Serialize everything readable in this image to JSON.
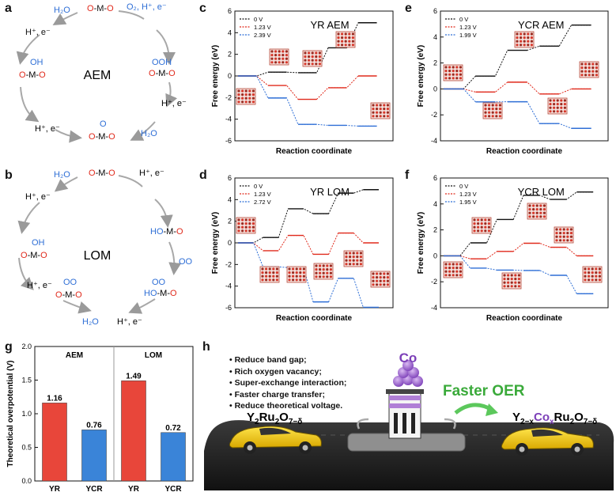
{
  "panels": {
    "a": "a",
    "b": "b",
    "c": "c",
    "d": "d",
    "e": "e",
    "f": "f",
    "g": "g",
    "h": "h"
  },
  "mechanisms": {
    "aem": {
      "center": "AEM",
      "species": [
        "H2O",
        "O-M-O",
        "O2, H+, e-",
        "OOH O-M-O",
        "H+, e-",
        "O O-M-O",
        "H2O",
        "H+, e-",
        "OH O-M-O",
        "H+, e-"
      ]
    },
    "lom": {
      "center": "LOM",
      "species": [
        "H2O",
        "O-M-O",
        "H+, e-",
        "HO-M-O",
        "OO",
        "OO HO-M-O",
        "H+, e-",
        "H2O",
        "OO O-M-O",
        "H+, e-",
        "OH O-M-O",
        "H+, e-"
      ]
    }
  },
  "chart_data": [
    {
      "id": "c",
      "type": "line",
      "title": "YR AEM",
      "xlabel": "Reaction coordinate",
      "ylabel": "Free energy (eV)",
      "ylim": [
        -6,
        6
      ],
      "yticks": [
        -6,
        -4,
        -2,
        0,
        2,
        4,
        6
      ],
      "series": [
        {
          "name": "0 V",
          "color": "#111111",
          "values": [
            0,
            0.35,
            0.3,
            2.6,
            4.92
          ]
        },
        {
          "name": "1.23 V",
          "color": "#e02a1c",
          "values": [
            0,
            -0.88,
            -2.16,
            -1.09,
            0
          ]
        },
        {
          "name": "2.39 V",
          "color": "#2f6fd6",
          "values": [
            0,
            -2.04,
            -4.48,
            -4.57,
            -4.64
          ]
        }
      ]
    },
    {
      "id": "d",
      "type": "line",
      "title": "YR LOM",
      "xlabel": "Reaction coordinate",
      "ylabel": "Free energy (eV)",
      "ylim": [
        -6,
        6
      ],
      "yticks": [
        -6,
        -4,
        -2,
        0,
        2,
        4,
        6
      ],
      "series": [
        {
          "name": "0 V",
          "color": "#111111",
          "values": [
            0,
            0.5,
            3.15,
            2.7,
            4.6,
            4.92
          ]
        },
        {
          "name": "1.23 V",
          "color": "#e02a1c",
          "values": [
            0,
            -0.73,
            0.69,
            -1.06,
            0.91,
            0
          ]
        },
        {
          "name": "2.72 V",
          "color": "#2f6fd6",
          "values": [
            0,
            -2.22,
            -2.29,
            -5.46,
            -3.28,
            -5.96
          ]
        }
      ]
    },
    {
      "id": "e",
      "type": "line",
      "title": "YCR AEM",
      "xlabel": "Reaction coordinate",
      "ylabel": "Free energy (eV)",
      "ylim": [
        -4,
        6
      ],
      "yticks": [
        -4,
        -2,
        0,
        2,
        4,
        6
      ],
      "series": [
        {
          "name": "0 V",
          "color": "#111111",
          "values": [
            0,
            0.99,
            2.98,
            3.3,
            4.92
          ]
        },
        {
          "name": "1.23 V",
          "color": "#e02a1c",
          "values": [
            0,
            -0.24,
            0.52,
            -0.39,
            0
          ]
        },
        {
          "name": "1.99 V",
          "color": "#2f6fd6",
          "values": [
            0,
            -1.0,
            -0.99,
            -2.67,
            -3.04
          ]
        }
      ]
    },
    {
      "id": "f",
      "type": "line",
      "title": "YCR LOM",
      "xlabel": "Reaction coordinate",
      "ylabel": "Free energy (eV)",
      "ylim": [
        -4,
        6
      ],
      "yticks": [
        -4,
        -2,
        0,
        2,
        4,
        6
      ],
      "series": [
        {
          "name": "0 V",
          "color": "#111111",
          "values": [
            0,
            1.0,
            2.8,
            4.66,
            4.35,
            4.92
          ]
        },
        {
          "name": "1.23 V",
          "color": "#e02a1c",
          "values": [
            0,
            -0.23,
            0.34,
            0.97,
            0.66,
            0
          ]
        },
        {
          "name": "1.95 V",
          "color": "#2f6fd6",
          "values": [
            0,
            -0.95,
            -1.1,
            -1.13,
            -1.5,
            -2.92
          ]
        }
      ]
    },
    {
      "id": "g",
      "type": "bar",
      "ylabel": "Theoretical overpotential (V)",
      "ylim": [
        0,
        2.0
      ],
      "yticks": [
        "0.0",
        "0.5",
        "1.0",
        "1.5",
        "2.0"
      ],
      "groups": [
        "AEM",
        "LOM"
      ],
      "categories": [
        "YR",
        "YCR",
        "YR",
        "YCR"
      ],
      "values": [
        1.16,
        0.76,
        1.49,
        0.72
      ],
      "value_labels": [
        "1.16",
        "0.76",
        "1.49",
        "0.72"
      ],
      "colors": [
        "#e8463a",
        "#3a84d8",
        "#e8463a",
        "#3a84d8"
      ]
    }
  ],
  "schematic": {
    "bullets": [
      "Reduce band gap;",
      "Rich oxygen vacancy;",
      "Super-exchange interaction;",
      "Faster charge transfer;",
      "Reduce theoretical voltage."
    ],
    "co_label": "Co",
    "faster": "Faster OER",
    "left_material": "Y2Ru2O7-δ",
    "right_material": "Y2-xCoxRu2O7-δ"
  }
}
